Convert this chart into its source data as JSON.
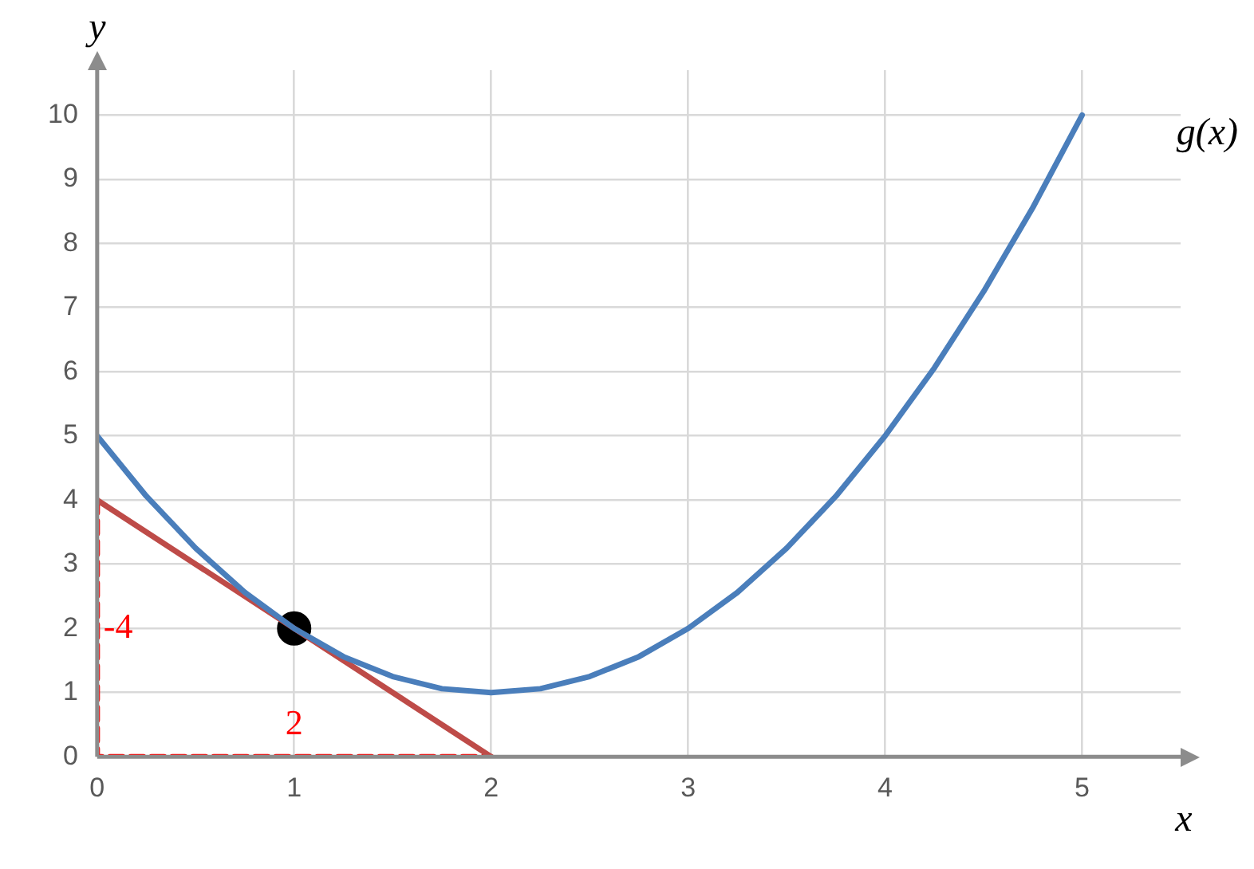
{
  "chart_data": {
    "type": "line",
    "xlabel": "x",
    "ylabel": "y",
    "xlim": [
      0,
      5.5
    ],
    "ylim": [
      0,
      10.7
    ],
    "xticks": [
      0,
      1,
      2,
      3,
      4,
      5
    ],
    "yticks": [
      0,
      1,
      2,
      3,
      4,
      5,
      6,
      7,
      8,
      9,
      10
    ],
    "grid": true,
    "legend": false,
    "series": [
      {
        "color": "#4a7ebb",
        "marker": "none",
        "line_style": "solid",
        "x": [
          0,
          0.25,
          0.5,
          0.75,
          1,
          1.25,
          1.5,
          1.75,
          2,
          2.25,
          2.5,
          2.75,
          3,
          3.25,
          3.5,
          3.75,
          4,
          4.25,
          4.5,
          4.75,
          5
        ],
        "values": [
          5,
          4.06,
          3.25,
          2.56,
          2,
          1.56,
          1.25,
          1.06,
          1,
          1.06,
          1.25,
          1.56,
          2,
          2.56,
          3.25,
          4.06,
          5,
          6.06,
          7.25,
          8.56,
          10
        ]
      },
      {
        "color": "#be4b48",
        "marker": "none",
        "line_style": "solid",
        "x": [
          0,
          2
        ],
        "values": [
          4,
          0
        ]
      },
      {
        "color": "#ff0000",
        "marker": "none",
        "line_style": "dashed",
        "x": [
          0,
          0,
          2
        ],
        "values": [
          4,
          0,
          0
        ]
      },
      {
        "type": "scatter",
        "color": "#000000",
        "marker": "circle",
        "x": [
          1
        ],
        "values": [
          2
        ]
      }
    ],
    "annotations": [
      "g(x)",
      "-4",
      "2"
    ]
  }
}
